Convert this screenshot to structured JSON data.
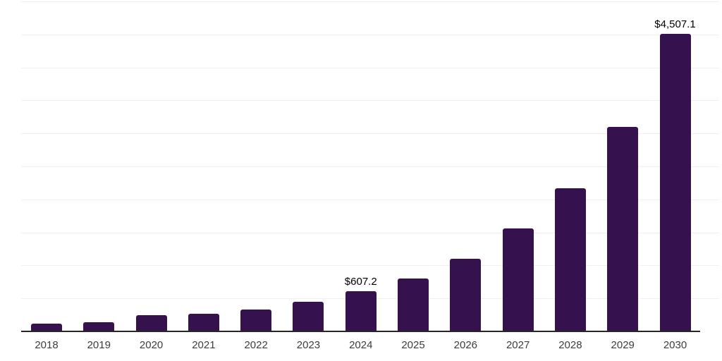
{
  "chart_data": {
    "type": "bar",
    "title": "",
    "xlabel": "",
    "ylabel": "",
    "categories": [
      "2018",
      "2019",
      "2020",
      "2021",
      "2022",
      "2023",
      "2024",
      "2025",
      "2026",
      "2027",
      "2028",
      "2029",
      "2030"
    ],
    "values": [
      122,
      135,
      248,
      267,
      334,
      449,
      607.2,
      805,
      1100,
      1555,
      2165,
      3100,
      4507.1
    ],
    "annotations": [
      {
        "category": "2024",
        "text": "$607.2"
      },
      {
        "category": "2030",
        "text": "$4,507.1"
      }
    ],
    "ylim": [
      0,
      5000
    ],
    "gridline_step": 500,
    "grid": "horizontal",
    "y_tick_labels_visible": false,
    "legend": "none",
    "colors": {
      "bar": "#35114D",
      "axis_line": "#262626",
      "gridline": "#f0f0f0",
      "tick_label": "#3d3d3d",
      "annotation": "#000000",
      "background": "#ffffff"
    }
  }
}
